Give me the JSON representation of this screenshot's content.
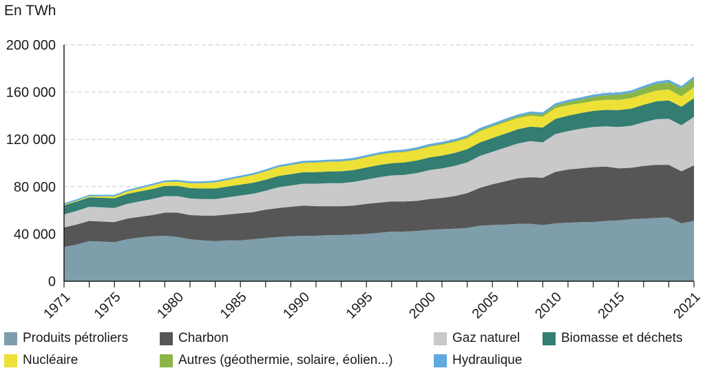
{
  "chart_data": {
    "type": "area",
    "stacked": true,
    "ylabel": "En TWh",
    "ylim": [
      0,
      200000
    ],
    "yticks": [
      "0",
      "40 000",
      "80 000",
      "120 000",
      "160 000",
      "200 000"
    ],
    "ytick_values": [
      0,
      40000,
      80000,
      120000,
      160000,
      200000
    ],
    "xlim": [
      1971,
      2021
    ],
    "xticks": [
      "1971",
      "1975",
      "1980",
      "1985",
      "1990",
      "1995",
      "2000",
      "2005",
      "2010",
      "2015",
      "2021"
    ],
    "xtick_values": [
      1971,
      1975,
      1980,
      1985,
      1990,
      1995,
      2000,
      2005,
      2010,
      2015,
      2021
    ],
    "grid": "horizontal dashed",
    "legend_position": "bottom",
    "x": [
      1971,
      1972,
      1973,
      1974,
      1975,
      1976,
      1977,
      1978,
      1979,
      1980,
      1981,
      1982,
      1983,
      1984,
      1985,
      1986,
      1987,
      1988,
      1989,
      1990,
      1991,
      1992,
      1993,
      1994,
      1995,
      1996,
      1997,
      1998,
      1999,
      2000,
      2001,
      2002,
      2003,
      2004,
      2005,
      2006,
      2007,
      2008,
      2009,
      2010,
      2011,
      2012,
      2013,
      2014,
      2015,
      2016,
      2017,
      2018,
      2019,
      2020,
      2021
    ],
    "series": [
      {
        "name": "Produits pétroliers",
        "color": "#7f9eab",
        "values": [
          29000,
          31000,
          34000,
          33500,
          33000,
          35500,
          37000,
          38000,
          38500,
          37500,
          35500,
          34500,
          34000,
          34500,
          34500,
          35500,
          36500,
          37500,
          38000,
          38500,
          38500,
          39000,
          39000,
          39500,
          40000,
          41000,
          42000,
          42000,
          42500,
          43500,
          44000,
          44500,
          45000,
          47000,
          47500,
          48000,
          48500,
          48500,
          47500,
          49000,
          49500,
          50000,
          50000,
          51000,
          51500,
          52500,
          53000,
          53500,
          54000,
          49000,
          51000
        ]
      },
      {
        "name": "Charbon",
        "color": "#565656",
        "values": [
          16500,
          17000,
          17000,
          17000,
          17000,
          17500,
          17500,
          18000,
          19500,
          20500,
          20500,
          21000,
          21500,
          22000,
          23000,
          23000,
          24000,
          24500,
          25000,
          25500,
          25000,
          24500,
          24500,
          24500,
          25500,
          25500,
          25500,
          25500,
          25500,
          26000,
          26500,
          27500,
          29500,
          32000,
          34500,
          36500,
          38500,
          39500,
          40000,
          43500,
          45000,
          45500,
          46500,
          46000,
          44000,
          43500,
          44500,
          45000,
          44500,
          44000,
          47000
        ]
      },
      {
        "name": "Gaz naturel",
        "color": "#c9c9c9",
        "values": [
          11000,
          11500,
          12000,
          12000,
          12000,
          12500,
          13000,
          13500,
          14000,
          14000,
          14000,
          14000,
          14000,
          14500,
          15000,
          15500,
          16000,
          17500,
          18000,
          18500,
          19000,
          19500,
          19500,
          20000,
          20500,
          21500,
          22000,
          22500,
          23500,
          24500,
          25000,
          25500,
          26000,
          27000,
          27500,
          28500,
          29500,
          30500,
          30000,
          32000,
          32500,
          33500,
          34000,
          34000,
          35000,
          35500,
          37000,
          38500,
          39000,
          39000,
          41000
        ]
      },
      {
        "name": "Biomasse et déchets",
        "color": "#337d72",
        "values": [
          7800,
          7900,
          8000,
          8100,
          8200,
          8300,
          8400,
          8500,
          8600,
          8700,
          8800,
          8900,
          9000,
          9100,
          9200,
          9300,
          9400,
          9500,
          9600,
          9700,
          9800,
          9900,
          10000,
          10100,
          10200,
          10300,
          10400,
          10500,
          10600,
          10700,
          10800,
          11000,
          11200,
          11400,
          11600,
          11800,
          12000,
          12300,
          12500,
          12800,
          13000,
          13300,
          13600,
          13900,
          14200,
          14500,
          14800,
          15200,
          15500,
          15600,
          15900
        ]
      },
      {
        "name": "Nucléaire",
        "color": "#ede137",
        "values": [
          500,
          700,
          900,
          1200,
          1500,
          2000,
          2500,
          3000,
          3200,
          3500,
          4000,
          4500,
          5000,
          5500,
          6000,
          6500,
          7000,
          7400,
          7600,
          7800,
          8000,
          8100,
          8200,
          8300,
          8500,
          8700,
          8600,
          8700,
          8900,
          9100,
          9200,
          9300,
          9200,
          9500,
          9500,
          9600,
          9400,
          9300,
          9100,
          9200,
          8900,
          8300,
          8400,
          8600,
          8700,
          8800,
          8900,
          9000,
          9200,
          8800,
          9200
        ]
      },
      {
        "name": "Autres (géothermie, solaire, éolien...)",
        "color": "#8bb546",
        "values": [
          60,
          70,
          80,
          90,
          100,
          110,
          120,
          130,
          140,
          150,
          160,
          170,
          180,
          190,
          200,
          220,
          240,
          260,
          280,
          300,
          330,
          360,
          390,
          420,
          450,
          490,
          530,
          580,
          630,
          680,
          740,
          800,
          880,
          980,
          1100,
          1250,
          1450,
          1700,
          2000,
          2300,
          2700,
          3100,
          3500,
          3900,
          4300,
          4700,
          5200,
          5700,
          6200,
          6700,
          7200
        ]
      },
      {
        "name": "Hydraulique",
        "color": "#5ea9dd",
        "values": [
          1100,
          1150,
          1200,
          1250,
          1300,
          1320,
          1340,
          1360,
          1380,
          1400,
          1410,
          1420,
          1430,
          1440,
          1450,
          1460,
          1470,
          1480,
          1490,
          1500,
          1510,
          1520,
          1530,
          1540,
          1550,
          1560,
          1570,
          1580,
          1590,
          1600,
          1610,
          1620,
          1640,
          1660,
          1680,
          1700,
          1720,
          1740,
          1760,
          1780,
          1800,
          1820,
          1840,
          1860,
          1880,
          1900,
          1920,
          1940,
          1960,
          1980,
          2000
        ]
      }
    ]
  }
}
